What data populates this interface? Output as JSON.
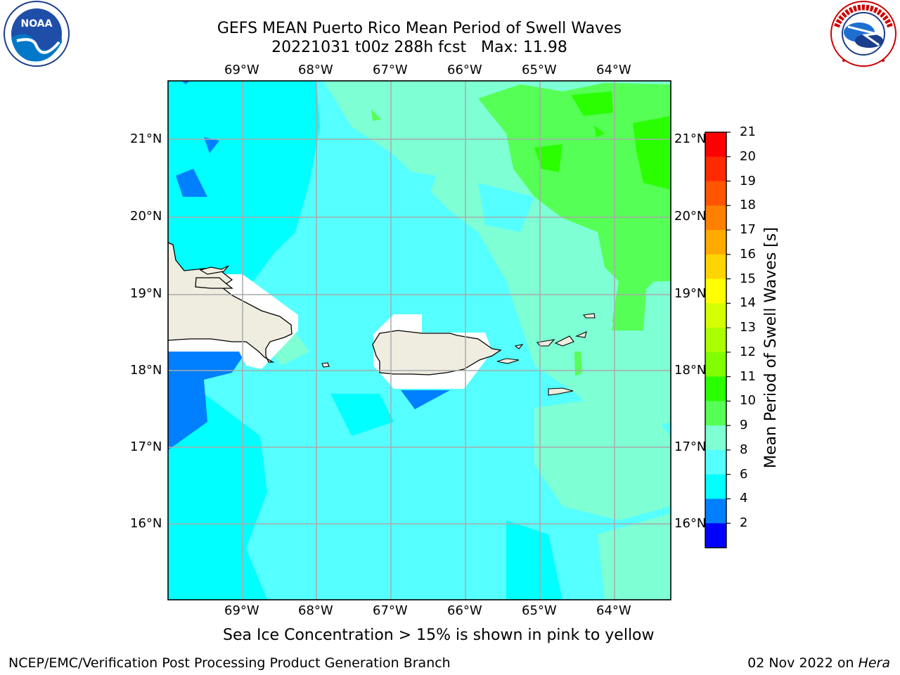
{
  "header": {
    "title_line1": "GEFS MEAN Puerto Rico Mean Period of Swell Waves",
    "title_line2": "20221031 t00z 288h fcst   Max: 11.98"
  },
  "logos": {
    "left": {
      "name": "NOAA",
      "ring_text": "NATIONAL OCEANIC AND ATMOSPHERIC ADMINISTRATION · U.S. DEPARTMENT OF COMMERCE"
    },
    "right": {
      "name": "NATIONAL WEATHER SERVICE"
    }
  },
  "map": {
    "lon_labels": [
      "69°W",
      "68°W",
      "67°W",
      "66°W",
      "65°W",
      "64°W"
    ],
    "lat_labels": [
      "21°N",
      "20°N",
      "19°N",
      "18°N",
      "17°N",
      "16°N"
    ]
  },
  "colorbar": {
    "title": "Mean Period of Swell Waves [s]",
    "ticks": [
      "21",
      "20",
      "19",
      "18",
      "17",
      "16",
      "15",
      "14",
      "13",
      "12",
      "11",
      "10",
      "9",
      "8",
      "6",
      "4",
      "2"
    ],
    "colors": [
      "#ff0000",
      "#ff2a00",
      "#ff5500",
      "#ff7f00",
      "#ffaa00",
      "#ffd400",
      "#ffff00",
      "#d4ff00",
      "#aaff00",
      "#7fff00",
      "#2aff00",
      "#55ff55",
      "#7fffd4",
      "#55ffff",
      "#00ffff",
      "#007fff",
      "#0000ff"
    ]
  },
  "caption": "Sea Ice Concentration > 15% is shown in pink to yellow",
  "footer": {
    "left": "NCEP/EMC/Verification Post Processing Product Generation Branch",
    "right_date": "02 Nov 2022 on",
    "right_host": "Hera"
  }
}
